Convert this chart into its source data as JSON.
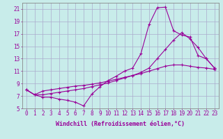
{
  "xlabel": "Windchill (Refroidissement éolien,°C)",
  "bg_color": "#c8ecea",
  "line_color": "#990099",
  "grid_color": "#aaaacc",
  "x_values": [
    0,
    1,
    2,
    3,
    4,
    5,
    6,
    7,
    8,
    9,
    10,
    11,
    12,
    13,
    14,
    15,
    16,
    17,
    18,
    19,
    20,
    21,
    22,
    23
  ],
  "series1": [
    8.0,
    7.2,
    6.8,
    6.8,
    6.5,
    6.3,
    6.0,
    5.4,
    7.3,
    8.5,
    9.5,
    10.2,
    11.0,
    11.5,
    13.8,
    18.5,
    21.2,
    21.3,
    17.5,
    16.8,
    16.5,
    13.5,
    13.0,
    11.5
  ],
  "series2": [
    8.0,
    7.2,
    7.8,
    8.0,
    8.2,
    8.4,
    8.6,
    8.7,
    8.9,
    9.1,
    9.4,
    9.7,
    10.0,
    10.3,
    10.6,
    11.0,
    11.4,
    11.8,
    12.0,
    12.0,
    11.8,
    11.6,
    11.5,
    11.3
  ],
  "series3": [
    8.0,
    7.2,
    7.2,
    7.4,
    7.6,
    7.8,
    8.0,
    8.2,
    8.5,
    8.8,
    9.1,
    9.5,
    9.9,
    10.3,
    10.8,
    11.5,
    13.0,
    14.5,
    16.0,
    17.2,
    16.2,
    14.8,
    13.0,
    11.5
  ],
  "ylim": [
    5,
    22
  ],
  "xlim": [
    -0.5,
    23.5
  ],
  "yticks": [
    5,
    7,
    9,
    11,
    13,
    15,
    17,
    19,
    21
  ],
  "xticks": [
    0,
    1,
    2,
    3,
    4,
    5,
    6,
    7,
    8,
    9,
    10,
    11,
    12,
    13,
    14,
    15,
    16,
    17,
    18,
    19,
    20,
    21,
    22,
    23
  ],
  "tick_fontsize": 5.5,
  "xlabel_fontsize": 6.0,
  "markersize": 2.0
}
